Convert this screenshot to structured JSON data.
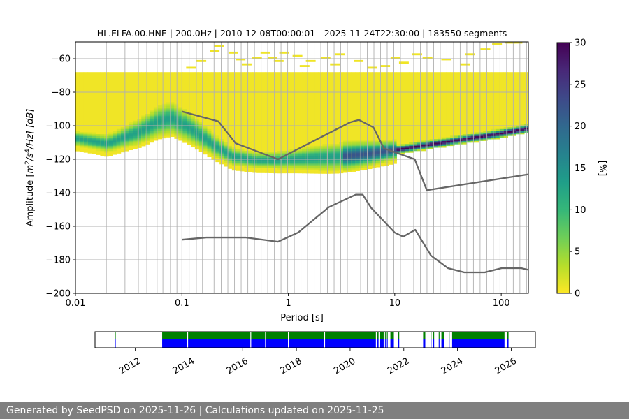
{
  "chart_data": [
    {
      "type": "heatmap",
      "title": "HL.ELFA.00.HNE | 200.0Hz | 2010-12-08T00:00:01 - 2025-11-24T22:30:00 | 183550 segments",
      "xlabel": "Period [s]",
      "ylabel_parts": {
        "prefix": "Amplitude [",
        "m": "m",
        "exp2": "2",
        "s": "/s",
        "exp4": "4",
        "hz": "/Hz] [dB]"
      },
      "x_scale": "log",
      "xlim": [
        0.01,
        180
      ],
      "ylim": [
        -200,
        -50
      ],
      "x_ticks": [
        {
          "value": 0.01,
          "label": "0.01"
        },
        {
          "value": 0.1,
          "label": "0.1"
        },
        {
          "value": 1,
          "label": "1"
        },
        {
          "value": 10,
          "label": "10"
        },
        {
          "value": 100,
          "label": "100"
        }
      ],
      "y_ticks": [
        {
          "value": -60,
          "label": "−60"
        },
        {
          "value": -80,
          "label": "−80"
        },
        {
          "value": -100,
          "label": "−100"
        },
        {
          "value": -120,
          "label": "−120"
        },
        {
          "value": -140,
          "label": "−140"
        },
        {
          "value": -160,
          "label": "−160"
        },
        {
          "value": -180,
          "label": "−180"
        },
        {
          "value": -200,
          "label": "−200"
        }
      ],
      "period_gridlines": [
        0.0195,
        0.0292,
        0.039,
        0.0468,
        0.0585,
        0.0663,
        0.078,
        0.0898,
        0.1,
        0.117,
        0.1366,
        0.1561,
        0.1756,
        0.2004,
        0.2341,
        0.2702,
        0.3122,
        0.3603,
        0.4163,
        0.4805,
        0.555,
        0.6405,
        0.7397,
        0.8533,
        0.9855,
        1.1372,
        1.3128,
        1.5161,
        1.7499,
        2.0199,
        2.3318,
        2.6915,
        3.1071,
        3.5866,
        4.1405,
        4.7795,
        5.5172,
        6.3688,
        7.3518,
        8.4864,
        9.7964,
        11.3085,
        13.0538,
        15.0687,
        17.3945,
        20.0794,
        23.1788,
        26.7564,
        30.8862,
        35.6536,
        41.1571,
        47.5103,
        54.8416,
        63.3087,
        73.0827,
        84.363,
        97.389,
        112.42,
        129.77,
        149.8,
        172.92
      ],
      "nlnm": {
        "x": [
          0.1,
          0.17,
          0.4,
          0.8,
          1.24,
          2.4,
          4.3,
          5.0,
          6.0,
          10.0,
          12.0,
          15.6,
          21.9,
          31.6,
          45.0,
          70.0,
          101.0,
          154.0,
          180.0
        ],
        "y": [
          -168,
          -166.7,
          -166.7,
          -169.2,
          -163.7,
          -148.6,
          -141.1,
          -141.1,
          -149.0,
          -163.8,
          -166.2,
          -162.1,
          -177.5,
          -185.0,
          -187.5,
          -187.5,
          -185.0,
          -185.0,
          -186.0
        ]
      },
      "nhnm": {
        "x": [
          0.1,
          0.22,
          0.32,
          0.8,
          3.8,
          4.6,
          6.3,
          7.9,
          15.4,
          20.0,
          180.0
        ],
        "y": [
          -91.5,
          -97.4,
          -110.5,
          -120.0,
          -98.0,
          -96.5,
          -101.0,
          -113.5,
          -120.0,
          -138.5,
          -129.0
        ]
      },
      "density_mode_curve": {
        "x": [
          0.01,
          0.02,
          0.04,
          0.06,
          0.08,
          0.1,
          0.15,
          0.2,
          0.3,
          0.5,
          0.8,
          1.5,
          3,
          6,
          10,
          20,
          50,
          100,
          180
        ],
        "y": [
          -108,
          -111,
          -104,
          -98,
          -96,
          -99,
          -106,
          -112,
          -119,
          -121,
          -121,
          -120,
          -119,
          -117,
          -115,
          -112,
          -108,
          -105,
          -102
        ]
      }
    },
    {
      "type": "timeline",
      "x_ticks": [
        {
          "year": 2012,
          "label": "2012"
        },
        {
          "year": 2014,
          "label": "2014"
        },
        {
          "year": 2016,
          "label": "2016"
        },
        {
          "year": 2018,
          "label": "2018"
        },
        {
          "year": 2020,
          "label": "2020"
        },
        {
          "year": 2022,
          "label": "2022"
        },
        {
          "year": 2024,
          "label": "2024"
        },
        {
          "year": 2026,
          "label": "2026"
        }
      ],
      "xlim": [
        2010.5,
        2026.9
      ],
      "green_color": "#008000",
      "blue_color": "#0000ff",
      "green_spans": [
        [
          2011.23,
          2011.27
        ],
        [
          2013.0,
          2020.96
        ],
        [
          2021.0,
          2021.06
        ],
        [
          2021.12,
          2021.25
        ],
        [
          2021.3,
          2021.32
        ],
        [
          2021.37,
          2021.4
        ],
        [
          2021.5,
          2021.63
        ],
        [
          2021.78,
          2021.83
        ],
        [
          2022.72,
          2022.8
        ],
        [
          2023.0,
          2023.03
        ],
        [
          2023.08,
          2023.13
        ],
        [
          2023.3,
          2023.33
        ],
        [
          2023.4,
          2023.5
        ],
        [
          2023.68,
          2023.7
        ],
        [
          2023.8,
          2025.75
        ],
        [
          2025.85,
          2025.9
        ]
      ],
      "blue_spans": [
        [
          2011.23,
          2011.27
        ],
        [
          2013.0,
          2020.96
        ],
        [
          2021.0,
          2021.06
        ],
        [
          2021.12,
          2021.25
        ],
        [
          2021.3,
          2021.32
        ],
        [
          2021.37,
          2021.4
        ],
        [
          2021.5,
          2021.63
        ],
        [
          2021.78,
          2021.83
        ],
        [
          2022.72,
          2022.8
        ],
        [
          2023.0,
          2023.03
        ],
        [
          2023.08,
          2023.13
        ],
        [
          2023.3,
          2023.33
        ],
        [
          2023.4,
          2023.5
        ],
        [
          2023.68,
          2023.7
        ],
        [
          2023.8,
          2025.75
        ],
        [
          2025.85,
          2025.9
        ]
      ],
      "gaps": [
        2013.95,
        2016.3,
        2016.85,
        2017.7,
        2019.05
      ]
    }
  ],
  "colorbar": {
    "label": "[%]",
    "ticks": [
      {
        "value": 0,
        "label": "0"
      },
      {
        "value": 5,
        "label": "5"
      },
      {
        "value": 10,
        "label": "10"
      },
      {
        "value": 15,
        "label": "15"
      },
      {
        "value": 20,
        "label": "20"
      },
      {
        "value": 25,
        "label": "25"
      },
      {
        "value": 30,
        "label": "30"
      }
    ],
    "range": [
      0,
      30
    ],
    "colormap_name": "viridis_r",
    "colors": [
      "#fde725",
      "#b5de2b",
      "#6ece58",
      "#35b779",
      "#1f9e89",
      "#26828e",
      "#31688e",
      "#3e4989",
      "#482878",
      "#440154"
    ]
  },
  "noise_model_color": "#666666",
  "footer": {
    "text": "Generated by SeedPSD on 2025-11-26 | Calculations updated on 2025-11-25"
  }
}
